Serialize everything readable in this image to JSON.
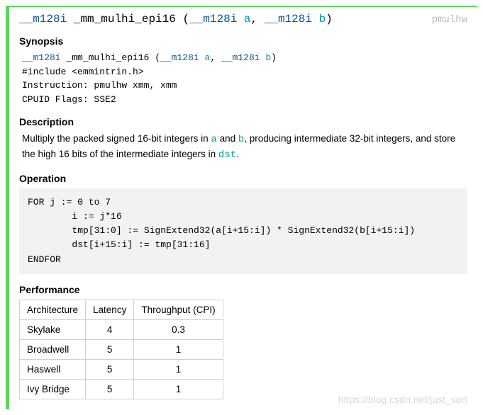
{
  "signature": {
    "return_type": "__m128i",
    "name": "_mm_mulhi_epi16",
    "params": [
      {
        "type": "__m128i",
        "name": "a"
      },
      {
        "type": "__m128i",
        "name": "b"
      }
    ],
    "instruction_tag": "pmulhw"
  },
  "sections": {
    "synopsis": {
      "heading": "Synopsis",
      "signature_line": {
        "return_type": "__m128i",
        "name": "_mm_mulhi_epi16",
        "params": [
          {
            "type": "__m128i",
            "name": "a"
          },
          {
            "type": "__m128i",
            "name": "b"
          }
        ]
      },
      "include_line": "#include <emmintrin.h>",
      "instruction_line": "Instruction: pmulhw xmm, xmm",
      "cpuid_line": "CPUID Flags: SSE2"
    },
    "description": {
      "heading": "Description",
      "prefix": "Multiply the packed signed 16-bit integers in ",
      "a": "a",
      "mid1": " and ",
      "b": "b",
      "mid2": ", producing intermediate 32-bit integers, and store the high 16 bits of the intermediate integers in ",
      "dst": "dst",
      "suffix": "."
    },
    "operation": {
      "heading": "Operation",
      "code": "FOR j := 0 to 7\n        i := j*16\n        tmp[31:0] := SignExtend32(a[i+15:i]) * SignExtend32(b[i+15:i])\n        dst[i+15:i] := tmp[31:16]\nENDFOR"
    },
    "performance": {
      "heading": "Performance",
      "columns": [
        "Architecture",
        "Latency",
        "Throughput (CPI)"
      ],
      "rows": [
        [
          "Skylake",
          "4",
          "0.3"
        ],
        [
          "Broadwell",
          "5",
          "1"
        ],
        [
          "Haswell",
          "5",
          "1"
        ],
        [
          "Ivy Bridge",
          "5",
          "1"
        ]
      ]
    }
  },
  "watermark": "https://blog.csdn.net/just_sort",
  "style": {
    "accent_color": "#5cd65c",
    "type_color": "#0b5394",
    "param_color": "#009999",
    "tag_color": "#bbbbbb",
    "codeblock_bg": "#f2f2f2",
    "border_color": "#cfcfcf"
  }
}
